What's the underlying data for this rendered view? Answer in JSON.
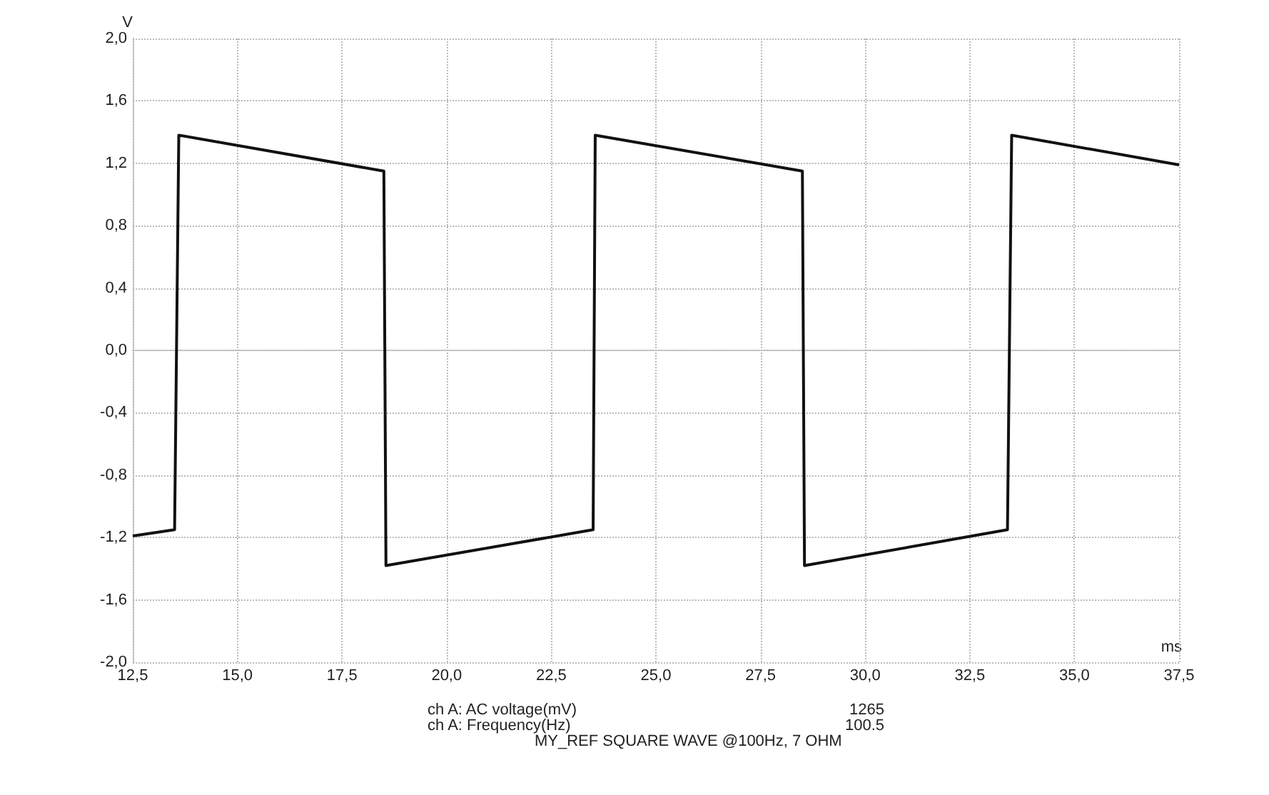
{
  "chart_data": {
    "type": "line",
    "xlabel": "ms",
    "ylabel": "V",
    "x": [
      12.5,
      13.5,
      13.6,
      18.5,
      18.55,
      23.5,
      23.55,
      28.5,
      28.55,
      33.4,
      33.5,
      37.5
    ],
    "series": [
      {
        "color": "#111111",
        "values": [
          -1.19,
          -1.15,
          1.38,
          1.15,
          -1.38,
          -1.15,
          1.38,
          1.15,
          -1.38,
          -1.15,
          1.38,
          1.19
        ]
      }
    ],
    "xlim": [
      12.5,
      37.5
    ],
    "ylim": [
      -2.0,
      2.0
    ],
    "xticks": [
      {
        "value": 12.5,
        "label": "12,5"
      },
      {
        "value": 15,
        "label": "15,0"
      },
      {
        "value": 17.5,
        "label": "17,5"
      },
      {
        "value": 20,
        "label": "20,0"
      },
      {
        "value": 22.5,
        "label": "22,5"
      },
      {
        "value": 25,
        "label": "25,0"
      },
      {
        "value": 27.5,
        "label": "27,5"
      },
      {
        "value": 30,
        "label": "30,0"
      },
      {
        "value": 32.5,
        "label": "32,5"
      },
      {
        "value": 35,
        "label": "35,0"
      },
      {
        "value": 37.5,
        "label": "37,5"
      }
    ],
    "yticks": [
      {
        "value": -2.0,
        "label": "-2,0"
      },
      {
        "value": -1.6,
        "label": "-1,6"
      },
      {
        "value": -1.2,
        "label": "-1,2"
      },
      {
        "value": -0.8,
        "label": "-0,8"
      },
      {
        "value": -0.4,
        "label": "-0,4"
      },
      {
        "value": 0,
        "label": "0,0"
      },
      {
        "value": 0.4,
        "label": "0,4"
      },
      {
        "value": 0.8,
        "label": "0,8"
      },
      {
        "value": 1.2,
        "label": "1,2"
      },
      {
        "value": 1.6,
        "label": "1,6"
      },
      {
        "value": 2.0,
        "label": "2,0"
      }
    ],
    "annotations": [
      "ch A: AC voltage(mV)",
      "1265",
      "ch A: Frequency(Hz)",
      "100.5",
      "MY_REF SQUARE WAVE @100Hz, 7 OHM"
    ],
    "grid": true,
    "marker": "none",
    "line_style": "solid"
  }
}
